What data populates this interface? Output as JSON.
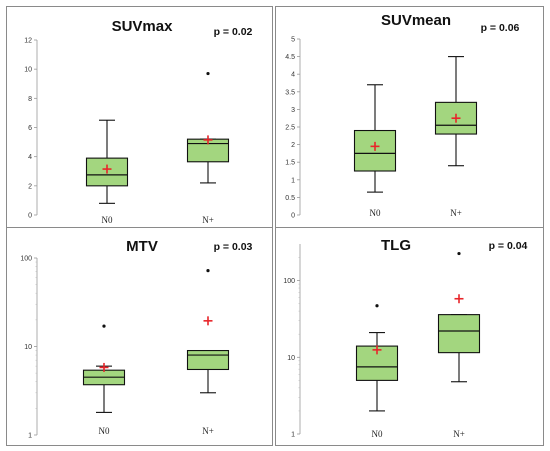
{
  "chart_data": [
    {
      "type": "box",
      "title": "SUVmax",
      "annotation": "p = 0.02",
      "scale": "linear",
      "ylim": [
        0,
        12
      ],
      "ticks": [
        0,
        2,
        4,
        6,
        8,
        10,
        12
      ],
      "tick_labels": [
        "0",
        "2",
        "4",
        "6",
        "8",
        "10",
        "12"
      ],
      "categories": [
        "N0",
        "N+"
      ],
      "boxes": [
        {
          "min": 0.8,
          "q1": 2.0,
          "median": 2.75,
          "q3": 3.9,
          "max": 6.5,
          "mean": 3.15,
          "outliers": []
        },
        {
          "min": 2.2,
          "q1": 3.65,
          "median": 4.9,
          "q3": 5.2,
          "max": 5.2,
          "mean": 5.15,
          "outliers": [
            9.7
          ]
        }
      ]
    },
    {
      "type": "box",
      "title": "SUVmean",
      "annotation": "p = 0.06",
      "scale": "linear",
      "ylim": [
        0,
        5
      ],
      "ticks": [
        0,
        0.5,
        1,
        1.5,
        2,
        2.5,
        3,
        3.5,
        4,
        4.5,
        5
      ],
      "tick_labels": [
        "0",
        "0.5",
        "1",
        "1.5",
        "2",
        "2.5",
        "3",
        "3.5",
        "4",
        "4.5",
        "5"
      ],
      "categories": [
        "N0",
        "N+"
      ],
      "boxes": [
        {
          "min": 0.65,
          "q1": 1.25,
          "median": 1.75,
          "q3": 2.4,
          "max": 3.7,
          "mean": 1.95,
          "outliers": []
        },
        {
          "min": 1.4,
          "q1": 2.3,
          "median": 2.55,
          "q3": 3.2,
          "max": 4.5,
          "mean": 2.75,
          "outliers": []
        }
      ]
    },
    {
      "type": "box",
      "title": "MTV",
      "annotation": "p = 0.03",
      "scale": "log",
      "ylim": [
        1,
        100
      ],
      "ticks": [
        1,
        10,
        100
      ],
      "tick_labels": [
        "1",
        "10",
        "100"
      ],
      "categories": [
        "N0",
        "N+"
      ],
      "boxes": [
        {
          "min": 1.8,
          "q1": 3.7,
          "median": 4.5,
          "q3": 5.4,
          "max": 6.0,
          "mean": 5.8,
          "outliers": [
            17
          ]
        },
        {
          "min": 3.0,
          "q1": 5.5,
          "median": 8.0,
          "q3": 9.0,
          "max": 9.0,
          "mean": 19.5,
          "outliers": [
            72
          ]
        }
      ]
    },
    {
      "type": "box",
      "title": "TLG",
      "annotation": "p = 0.04",
      "scale": "log",
      "ylim": [
        1,
        300
      ],
      "ticks": [
        1,
        10,
        100
      ],
      "tick_labels": [
        "1",
        "10",
        "100"
      ],
      "categories": [
        "N0",
        "N+"
      ],
      "boxes": [
        {
          "min": 2.0,
          "q1": 5.0,
          "median": 7.5,
          "q3": 14,
          "max": 21,
          "mean": 12.5,
          "outliers": [
            47
          ]
        },
        {
          "min": 4.8,
          "q1": 11.5,
          "median": 22,
          "q3": 36,
          "max": 36,
          "mean": 58,
          "outliers": [
            225
          ]
        }
      ]
    }
  ]
}
